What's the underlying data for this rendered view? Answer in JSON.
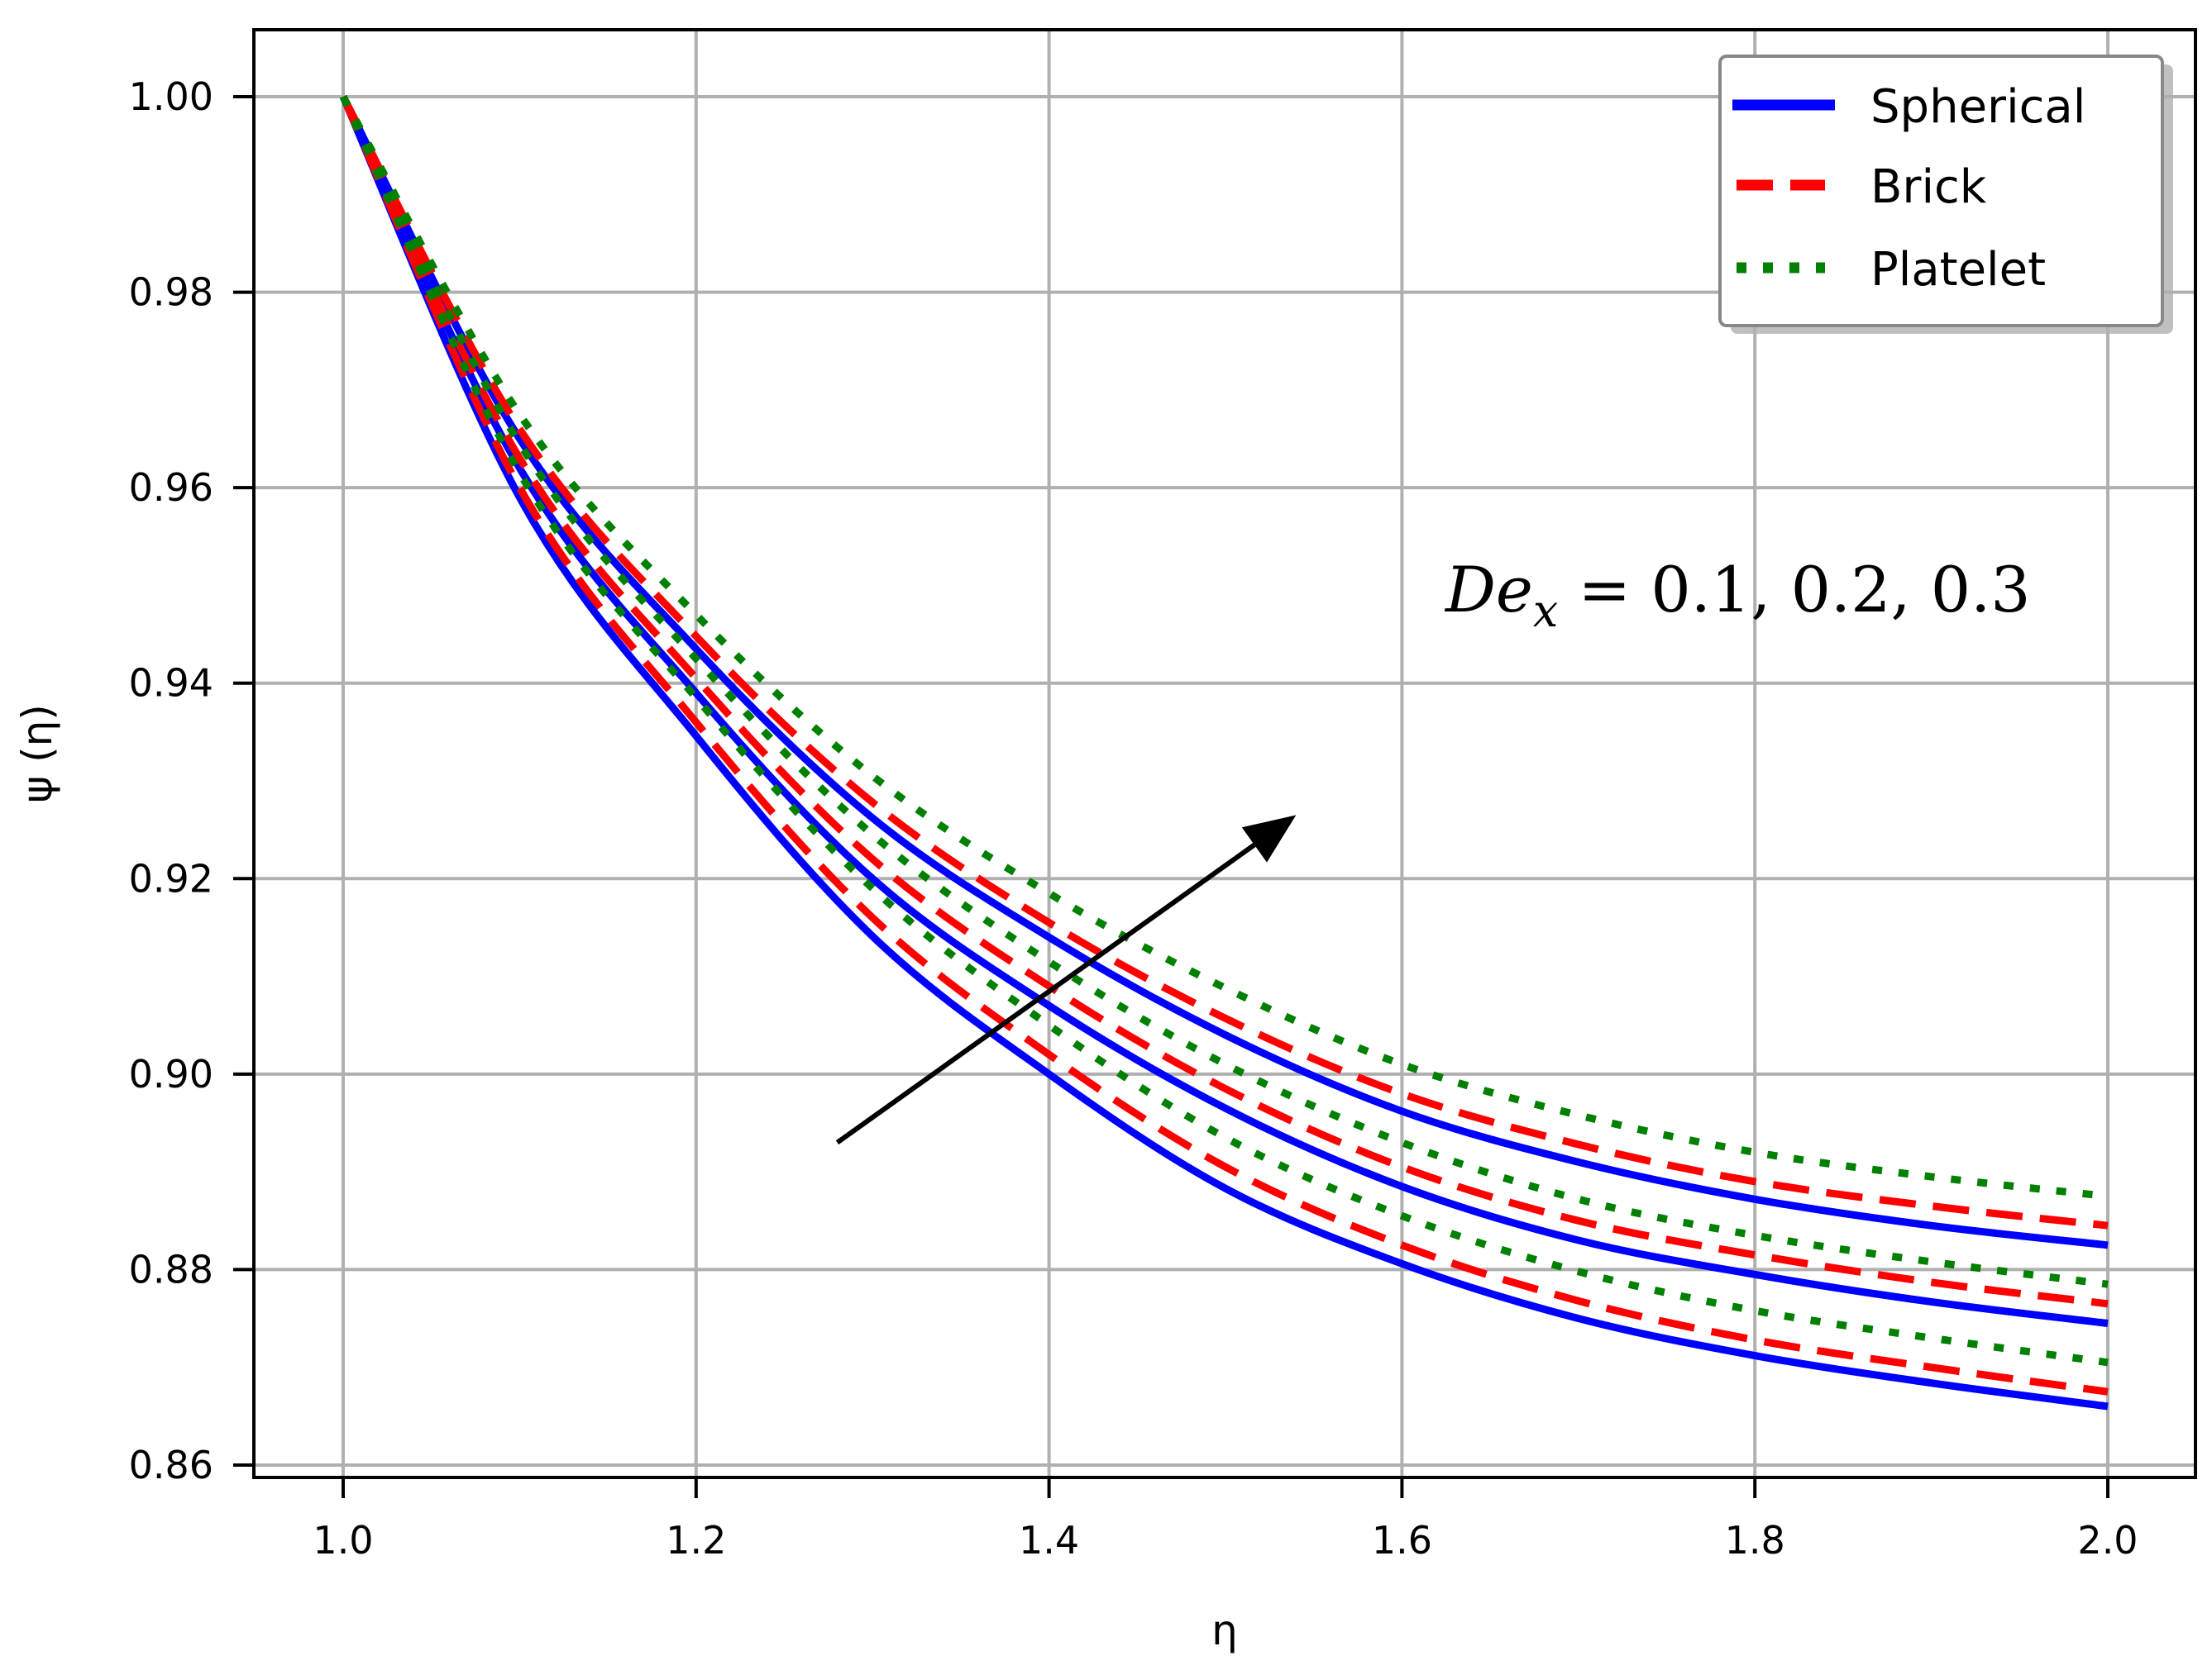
{
  "chart_data": {
    "type": "line",
    "title": "",
    "xlabel": "η",
    "ylabel": "ψ (η)",
    "xlim": [
      0.95,
      2.05
    ],
    "ylim": [
      0.8575,
      1.0055
    ],
    "grid": true,
    "legend_position": "upper right",
    "x_ticks": [
      "1.0",
      "1.2",
      "1.4",
      "1.6",
      "1.8",
      "2.0"
    ],
    "y_ticks": [
      "0.86",
      "0.88",
      "0.90",
      "0.92",
      "0.94",
      "0.96",
      "0.98",
      "1.00"
    ],
    "legend": [
      {
        "label": "Spherical",
        "color": "#0000ff",
        "style": "solid"
      },
      {
        "label": "Brick",
        "color": "#ff0000",
        "style": "dashed"
      },
      {
        "label": "Platelet",
        "color": "#008000",
        "style": "dotted"
      }
    ],
    "annotation": {
      "text_main": "De",
      "text_sub": "x",
      "text_rest": " = 0.1, 0.2, 0.3",
      "arrow": {
        "from": [
          1.28,
          0.893
        ],
        "to": [
          1.54,
          0.9265
        ]
      }
    },
    "x": [
      1.0,
      1.1,
      1.2,
      1.3,
      1.4,
      1.5,
      1.6,
      1.7,
      1.8,
      1.9,
      2.0
    ],
    "series": [
      {
        "name": "Spherical",
        "De_x": 0.1,
        "values": [
          1.0,
          0.959,
          0.9346,
          0.9141,
          0.9,
          0.8883,
          0.8806,
          0.875,
          0.8712,
          0.8684,
          0.866
        ]
      },
      {
        "name": "Spherical",
        "De_x": 0.2,
        "values": [
          1.0,
          0.962,
          0.939,
          0.92,
          0.907,
          0.8965,
          0.8885,
          0.883,
          0.8795,
          0.8767,
          0.8745
        ]
      },
      {
        "name": "Spherical",
        "De_x": 0.3,
        "values": [
          1.0,
          0.965,
          0.9435,
          0.9262,
          0.914,
          0.904,
          0.8962,
          0.891,
          0.8872,
          0.8845,
          0.8825
        ]
      },
      {
        "name": "Brick",
        "De_x": 0.1,
        "values": [
          1.0,
          0.96,
          0.936,
          0.916,
          0.902,
          0.8905,
          0.8825,
          0.8768,
          0.8728,
          0.87,
          0.8675
        ]
      },
      {
        "name": "Brick",
        "De_x": 0.2,
        "values": [
          1.0,
          0.963,
          0.9405,
          0.922,
          0.909,
          0.8985,
          0.8905,
          0.885,
          0.8815,
          0.8787,
          0.8765
        ]
      },
      {
        "name": "Brick",
        "De_x": 0.3,
        "values": [
          1.0,
          0.966,
          0.9448,
          0.9278,
          0.9155,
          0.9057,
          0.898,
          0.8928,
          0.889,
          0.8865,
          0.8845
        ]
      },
      {
        "name": "Platelet",
        "De_x": 0.1,
        "values": [
          1.0,
          0.9615,
          0.9385,
          0.919,
          0.905,
          0.8935,
          0.8855,
          0.8798,
          0.8758,
          0.873,
          0.8705
        ]
      },
      {
        "name": "Platelet",
        "De_x": 0.2,
        "values": [
          1.0,
          0.9645,
          0.9425,
          0.9245,
          0.9115,
          0.901,
          0.893,
          0.8872,
          0.8835,
          0.8808,
          0.8785
        ]
      },
      {
        "name": "Platelet",
        "De_x": 0.3,
        "values": [
          1.0,
          0.9675,
          0.947,
          0.9305,
          0.9185,
          0.9088,
          0.901,
          0.8958,
          0.892,
          0.8895,
          0.8875
        ]
      }
    ]
  }
}
